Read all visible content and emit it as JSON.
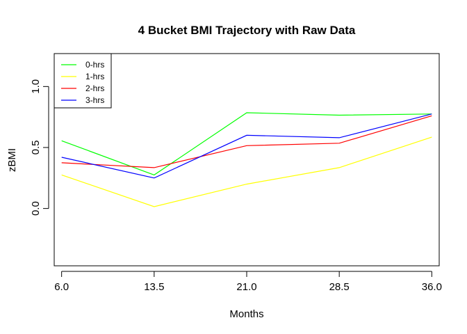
{
  "chart_data": {
    "type": "line",
    "title": "4 Bucket BMI Trajectory with Raw Data",
    "xlabel": "Months",
    "ylabel": "zBMI",
    "x": [
      6.0,
      13.5,
      21.0,
      28.5,
      36.0
    ],
    "x_tick_labels": [
      "6.0",
      "13.5",
      "21.0",
      "28.5",
      "36.0"
    ],
    "y_ticks": [
      0.0,
      0.5,
      1.0
    ],
    "y_tick_labels": [
      "0.0",
      "0.5",
      "1.0"
    ],
    "xlim": [
      5.4,
      36.6
    ],
    "ylim": [
      -0.47,
      1.27
    ],
    "grid": false,
    "legend_position": "top-left",
    "series": [
      {
        "name": "0-hrs",
        "color": "#00ff00",
        "values": [
          0.555,
          0.275,
          0.785,
          0.765,
          0.775
        ]
      },
      {
        "name": "1-hrs",
        "color": "#ffff00",
        "values": [
          0.275,
          0.015,
          0.2,
          0.335,
          0.585
        ]
      },
      {
        "name": "2-hrs",
        "color": "#ff0000",
        "values": [
          0.375,
          0.335,
          0.515,
          0.535,
          0.76
        ]
      },
      {
        "name": "3-hrs",
        "color": "#0000ff",
        "values": [
          0.42,
          0.25,
          0.6,
          0.58,
          0.775
        ]
      }
    ]
  }
}
